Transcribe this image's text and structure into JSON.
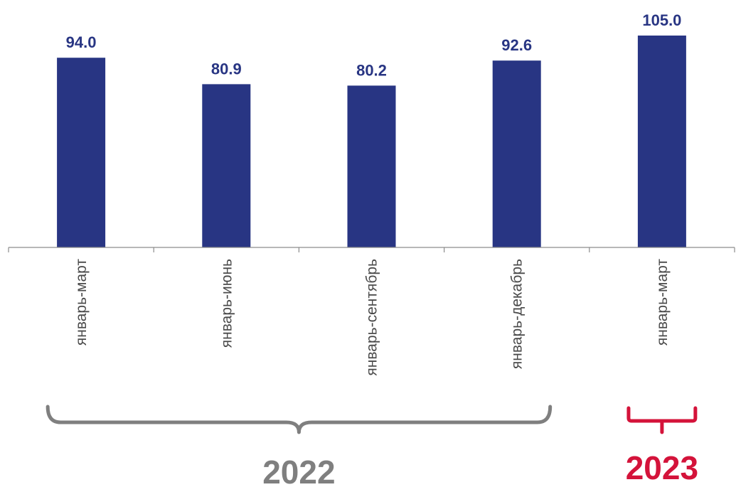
{
  "chart_data": {
    "type": "bar",
    "categories": [
      "январь-март",
      "январь-июнь",
      "январь-сентябрь",
      "январь-декабрь",
      "январь-март"
    ],
    "values": [
      94.0,
      80.9,
      80.2,
      92.6,
      105.0
    ],
    "value_labels": [
      "94.0",
      "80.9",
      "80.2",
      "92.6",
      "105.0"
    ],
    "title": "",
    "xlabel": "",
    "ylabel": "",
    "ylim": [
      0,
      110
    ],
    "grid": false,
    "legend": "none",
    "groups": [
      {
        "label": "2022",
        "category_indices": [
          0,
          1,
          2,
          3
        ],
        "color": "#7f7f7f"
      },
      {
        "label": "2023",
        "category_indices": [
          4
        ],
        "color": "#d4133a"
      }
    ]
  },
  "colors": {
    "bar": "#283583",
    "value_label": "#283583",
    "axis": "#8c8c8c",
    "category_label": "#4a4a4a"
  }
}
